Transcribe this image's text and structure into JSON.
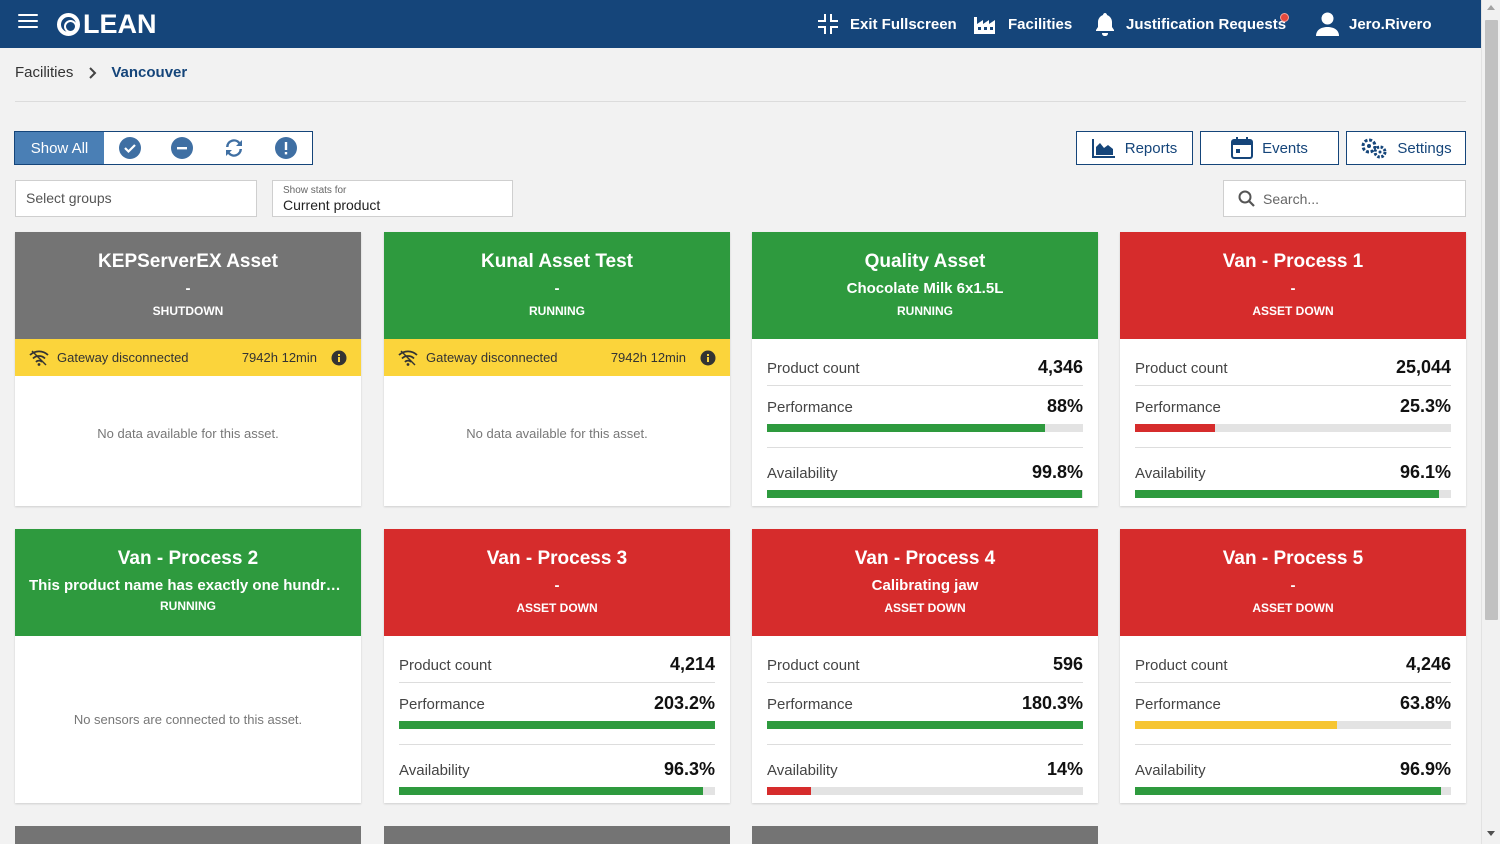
{
  "app": {
    "logo": "LEAN"
  },
  "topnav": {
    "fullscreen": "Exit Fullscreen",
    "facilities": "Facilities",
    "justification": "Justification Requests",
    "user": "Jero.Rivero"
  },
  "breadcrumb": {
    "root": "Facilities",
    "current": "Vancouver"
  },
  "filters": {
    "show_all": "Show All",
    "select_groups_placeholder": "Select groups",
    "stats_label": "Show stats for",
    "stats_value": "Current product",
    "search_placeholder": "Search..."
  },
  "actions": {
    "reports": "Reports",
    "events": "Events",
    "settings": "Settings"
  },
  "colors": {
    "brand": "#15457a",
    "green": "#2e9a3e",
    "red": "#d62c2c",
    "grey": "#747474",
    "yellow": "#fbd43b"
  },
  "labels": {
    "product_count": "Product count",
    "performance": "Performance",
    "availability": "Availability"
  },
  "cards": [
    {
      "title": "KEPServerEX Asset",
      "product": "-",
      "status": "SHUTDOWN",
      "warning": "Gateway disconnected",
      "warning_time": "7942h 12min",
      "empty": "No data available for this asset."
    },
    {
      "title": "Kunal Asset Test",
      "product": "-",
      "status": "RUNNING",
      "warning": "Gateway disconnected",
      "warning_time": "7942h 12min",
      "empty": "No data available for this asset."
    },
    {
      "title": "Quality Asset",
      "product": "Chocolate Milk 6x1.5L",
      "status": "RUNNING",
      "product_count": "4,346",
      "performance": "88%",
      "performance_pct": 88,
      "availability": "99.8%",
      "availability_pct": 99.8
    },
    {
      "title": "Van - Process 1",
      "product": "-",
      "status": "ASSET DOWN",
      "product_count": "25,044",
      "performance": "25.3%",
      "performance_pct": 25.3,
      "availability": "96.1%",
      "availability_pct": 96.1
    },
    {
      "title": "Van - Process 2",
      "product": "This product name has exactly one hundred ...",
      "status": "RUNNING",
      "empty": "No sensors are connected to this asset."
    },
    {
      "title": "Van - Process 3",
      "product": "-",
      "status": "ASSET DOWN",
      "product_count": "4,214",
      "performance": "203.2%",
      "performance_pct": 100,
      "availability": "96.3%",
      "availability_pct": 96.3
    },
    {
      "title": "Van - Process 4",
      "product": "Calibrating jaw",
      "status": "ASSET DOWN",
      "product_count": "596",
      "performance": "180.3%",
      "performance_pct": 100,
      "availability": "14%",
      "availability_pct": 14
    },
    {
      "title": "Van - Process 5",
      "product": "-",
      "status": "ASSET DOWN",
      "product_count": "4,246",
      "performance": "63.8%",
      "performance_pct": 63.8,
      "availability": "96.9%",
      "availability_pct": 96.9
    }
  ]
}
